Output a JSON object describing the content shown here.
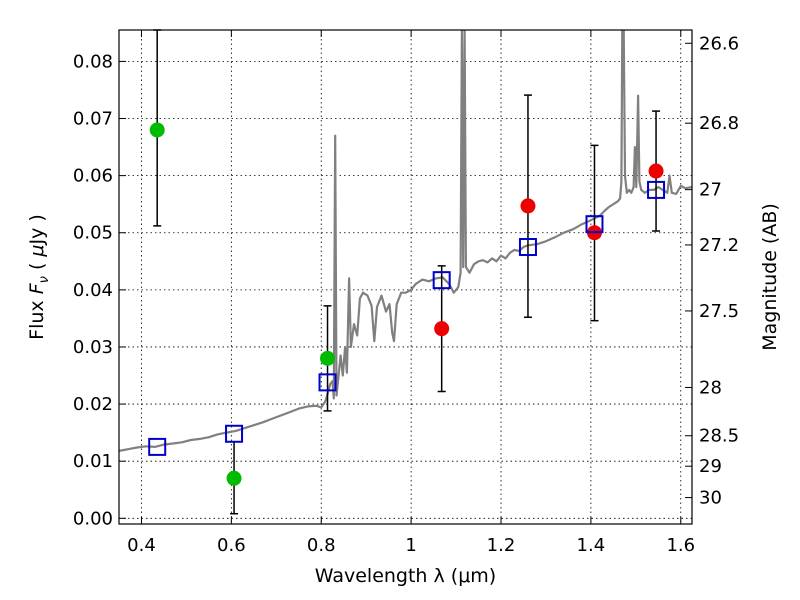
{
  "chart_data": {
    "type": "scatter",
    "title": "",
    "xlabel": "Wavelength  λ (μm)",
    "ylabel": "Flux  F_ν  ( μJy )",
    "ylabel_parts": {
      "pre": "Flux  ",
      "sym": "F",
      "sub": "ν",
      "mid": "  ( ",
      "mu": "μ",
      "post": "Jy )"
    },
    "y2label": "Magnitude (AB)",
    "xlim": [
      0.35,
      1.625
    ],
    "ylim": [
      -0.001,
      0.0855
    ],
    "grid": true,
    "grid_style": "dotted",
    "x_ticks": [
      0.4,
      0.6,
      0.8,
      1.0,
      1.2,
      1.4,
      1.6
    ],
    "x_tick_labels": [
      "0.4",
      "0.6",
      "0.8",
      "1",
      "1.2",
      "1.4",
      "1.6"
    ],
    "y_ticks": [
      0.0,
      0.01,
      0.02,
      0.03,
      0.04,
      0.05,
      0.06,
      0.07,
      0.08
    ],
    "y_tick_labels": [
      "0.00",
      "0.01",
      "0.02",
      "0.03",
      "0.04",
      "0.05",
      "0.06",
      "0.07",
      "0.08"
    ],
    "y2_ticks": [
      {
        "label": "26.6",
        "mag": 26.6
      },
      {
        "label": "26.8",
        "mag": 26.8
      },
      {
        "label": "27",
        "mag": 27.0
      },
      {
        "label": "27.2",
        "mag": 27.2
      },
      {
        "label": "27.5",
        "mag": 27.5
      },
      {
        "label": "28",
        "mag": 28.0
      },
      {
        "label": "28.5",
        "mag": 28.5
      },
      {
        "label": "29",
        "mag": 29.0
      },
      {
        "label": "30",
        "mag": 30.0
      }
    ],
    "series": [
      {
        "marker": "circle",
        "color": "#00bb00",
        "points": [
          {
            "x": 0.435,
            "y": 0.068,
            "err_low": 0.0512,
            "err_high": 0.0855
          },
          {
            "x": 0.606,
            "y": 0.007,
            "err_low": 0.0008,
            "err_high": 0.0134
          },
          {
            "x": 0.814,
            "y": 0.028,
            "err_low": 0.0188,
            "err_high": 0.0372
          }
        ]
      },
      {
        "marker": "circle",
        "color": "#ee0000",
        "points": [
          {
            "x": 1.068,
            "y": 0.0332,
            "err_low": 0.0222,
            "err_high": 0.0442
          },
          {
            "x": 1.26,
            "y": 0.0547,
            "err_low": 0.0352,
            "err_high": 0.0741
          },
          {
            "x": 1.408,
            "y": 0.05,
            "err_low": 0.0346,
            "err_high": 0.0653
          },
          {
            "x": 1.545,
            "y": 0.0608,
            "err_low": 0.0503,
            "err_high": 0.0713
          }
        ]
      },
      {
        "marker": "open-square",
        "color": "#0000cc",
        "points": [
          {
            "x": 0.435,
            "y": 0.0125
          },
          {
            "x": 0.606,
            "y": 0.0148
          },
          {
            "x": 0.814,
            "y": 0.0238
          },
          {
            "x": 1.068,
            "y": 0.0417
          },
          {
            "x": 1.26,
            "y": 0.0475
          },
          {
            "x": 1.408,
            "y": 0.0515
          },
          {
            "x": 1.545,
            "y": 0.0575
          }
        ]
      },
      {
        "marker": "line",
        "color": "#808080",
        "points": [
          [
            0.35,
            0.0118
          ],
          [
            0.37,
            0.0121
          ],
          [
            0.39,
            0.0124
          ],
          [
            0.41,
            0.0126
          ],
          [
            0.43,
            0.0125
          ],
          [
            0.45,
            0.0129
          ],
          [
            0.47,
            0.0131
          ],
          [
            0.49,
            0.0133
          ],
          [
            0.51,
            0.0137
          ],
          [
            0.53,
            0.0139
          ],
          [
            0.55,
            0.0142
          ],
          [
            0.57,
            0.0147
          ],
          [
            0.59,
            0.015
          ],
          [
            0.61,
            0.0153
          ],
          [
            0.63,
            0.0158
          ],
          [
            0.65,
            0.0163
          ],
          [
            0.67,
            0.0168
          ],
          [
            0.69,
            0.0174
          ],
          [
            0.71,
            0.018
          ],
          [
            0.73,
            0.0186
          ],
          [
            0.75,
            0.0192
          ],
          [
            0.77,
            0.0196
          ],
          [
            0.79,
            0.0197
          ],
          [
            0.8,
            0.0194
          ],
          [
            0.81,
            0.0206
          ],
          [
            0.82,
            0.0235
          ],
          [
            0.825,
            0.024
          ],
          [
            0.828,
            0.021
          ],
          [
            0.831,
            0.067
          ],
          [
            0.834,
            0.0215
          ],
          [
            0.838,
            0.0245
          ],
          [
            0.843,
            0.0285
          ],
          [
            0.848,
            0.025
          ],
          [
            0.853,
            0.03
          ],
          [
            0.857,
            0.0255
          ],
          [
            0.862,
            0.042
          ],
          [
            0.866,
            0.03
          ],
          [
            0.873,
            0.034
          ],
          [
            0.88,
            0.032
          ],
          [
            0.886,
            0.0385
          ],
          [
            0.893,
            0.0395
          ],
          [
            0.903,
            0.039
          ],
          [
            0.912,
            0.0372
          ],
          [
            0.918,
            0.031
          ],
          [
            0.924,
            0.037
          ],
          [
            0.934,
            0.039
          ],
          [
            0.944,
            0.0362
          ],
          [
            0.952,
            0.0375
          ],
          [
            0.958,
            0.0325
          ],
          [
            0.962,
            0.031
          ],
          [
            0.968,
            0.0375
          ],
          [
            0.978,
            0.0395
          ],
          [
            0.988,
            0.0395
          ],
          [
            1.0,
            0.04
          ],
          [
            1.01,
            0.041
          ],
          [
            1.025,
            0.0418
          ],
          [
            1.04,
            0.0415
          ],
          [
            1.055,
            0.042
          ],
          [
            1.07,
            0.0422
          ],
          [
            1.085,
            0.041
          ],
          [
            1.095,
            0.0395
          ],
          [
            1.105,
            0.0405
          ],
          [
            1.11,
            0.043
          ],
          [
            1.113,
            0.086
          ],
          [
            1.116,
            0.044
          ],
          [
            1.119,
            0.086
          ],
          [
            1.122,
            0.044
          ],
          [
            1.13,
            0.043
          ],
          [
            1.14,
            0.0445
          ],
          [
            1.15,
            0.045
          ],
          [
            1.16,
            0.0452
          ],
          [
            1.17,
            0.0448
          ],
          [
            1.18,
            0.0455
          ],
          [
            1.19,
            0.045
          ],
          [
            1.2,
            0.046
          ],
          [
            1.21,
            0.0455
          ],
          [
            1.22,
            0.0465
          ],
          [
            1.23,
            0.047
          ],
          [
            1.24,
            0.0468
          ],
          [
            1.25,
            0.0475
          ],
          [
            1.26,
            0.0478
          ],
          [
            1.28,
            0.048
          ],
          [
            1.3,
            0.0485
          ],
          [
            1.32,
            0.0492
          ],
          [
            1.34,
            0.05
          ],
          [
            1.36,
            0.0506
          ],
          [
            1.38,
            0.0515
          ],
          [
            1.4,
            0.0522
          ],
          [
            1.42,
            0.053
          ],
          [
            1.43,
            0.0538
          ],
          [
            1.44,
            0.0545
          ],
          [
            1.45,
            0.055
          ],
          [
            1.46,
            0.0555
          ],
          [
            1.465,
            0.056
          ],
          [
            1.468,
            0.059
          ],
          [
            1.47,
            0.086
          ],
          [
            1.473,
            0.086
          ],
          [
            1.476,
            0.06
          ],
          [
            1.48,
            0.057
          ],
          [
            1.485,
            0.0575
          ],
          [
            1.49,
            0.057
          ],
          [
            1.495,
            0.058
          ],
          [
            1.498,
            0.065
          ],
          [
            1.501,
            0.058
          ],
          [
            1.505,
            0.074
          ],
          [
            1.508,
            0.059
          ],
          [
            1.512,
            0.0575
          ],
          [
            1.52,
            0.057
          ],
          [
            1.53,
            0.0575
          ],
          [
            1.54,
            0.0575
          ],
          [
            1.55,
            0.058
          ],
          [
            1.56,
            0.0575
          ],
          [
            1.57,
            0.057
          ],
          [
            1.575,
            0.06
          ],
          [
            1.58,
            0.057
          ],
          [
            1.59,
            0.0568
          ],
          [
            1.595,
            0.0575
          ],
          [
            1.6,
            0.0582
          ],
          [
            1.61,
            0.0578
          ],
          [
            1.625,
            0.058
          ]
        ]
      }
    ]
  }
}
